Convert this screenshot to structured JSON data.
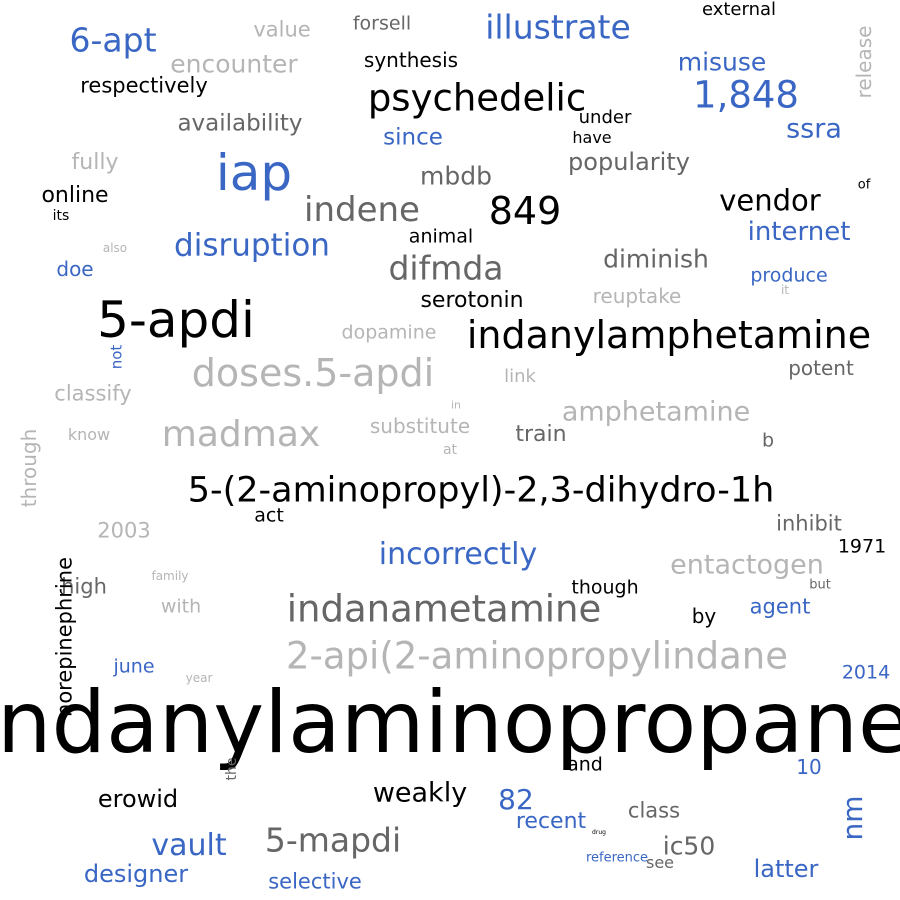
{
  "palette": {
    "black": "#000000",
    "blue": "#3a66c4",
    "dark_gray": "#666666",
    "light_gray": "#b5b5b5"
  },
  "words": [
    {
      "text": "indanylaminopropane",
      "color": "black"
    },
    {
      "text": "2-api(2-aminopropylindane",
      "color": "light_gray"
    },
    {
      "text": "5-(2-aminopropyl)-2,3-dihydro-1h",
      "color": "black"
    },
    {
      "text": "indanametamine",
      "color": "dark_gray"
    },
    {
      "text": "indanylamphetamine",
      "color": "black"
    },
    {
      "text": "5-apdi",
      "color": "black"
    },
    {
      "text": "doses.5-apdi",
      "color": "light_gray"
    },
    {
      "text": "iap",
      "color": "blue"
    },
    {
      "text": "madmax",
      "color": "light_gray"
    },
    {
      "text": "psychedelic",
      "color": "black"
    },
    {
      "text": "1,848",
      "color": "blue"
    },
    {
      "text": "indene",
      "color": "dark_gray"
    },
    {
      "text": "illustrate",
      "color": "blue"
    },
    {
      "text": "6-apt",
      "color": "blue"
    },
    {
      "text": "difmda",
      "color": "dark_gray"
    },
    {
      "text": "849",
      "color": "black"
    },
    {
      "text": "amphetamine",
      "color": "light_gray"
    },
    {
      "text": "disruption",
      "color": "blue"
    },
    {
      "text": "incorrectly",
      "color": "blue"
    },
    {
      "text": "5-mapdi",
      "color": "dark_gray"
    },
    {
      "text": "entactogen",
      "color": "light_gray"
    },
    {
      "text": "encounter",
      "color": "light_gray"
    },
    {
      "text": "vendor",
      "color": "black"
    },
    {
      "text": "internet",
      "color": "blue"
    },
    {
      "text": "diminish",
      "color": "dark_gray"
    },
    {
      "text": "popularity",
      "color": "dark_gray"
    },
    {
      "text": "availability",
      "color": "dark_gray"
    },
    {
      "text": "ssra",
      "color": "blue"
    },
    {
      "text": "misuse",
      "color": "blue"
    },
    {
      "text": "vault",
      "color": "blue"
    },
    {
      "text": "serotonin",
      "color": "black"
    },
    {
      "text": "mbdb",
      "color": "dark_gray"
    },
    {
      "text": "erowid",
      "color": "black"
    },
    {
      "text": "weakly",
      "color": "black"
    },
    {
      "text": "82",
      "color": "blue"
    },
    {
      "text": "nm",
      "color": "blue",
      "vertical": true
    },
    {
      "text": "designer",
      "color": "blue"
    },
    {
      "text": "ic50",
      "color": "dark_gray"
    },
    {
      "text": "latter",
      "color": "blue"
    },
    {
      "text": "recent",
      "color": "blue"
    },
    {
      "text": "selective",
      "color": "blue"
    },
    {
      "text": "respectively",
      "color": "black"
    },
    {
      "text": "synthesis",
      "color": "black"
    },
    {
      "text": "value",
      "color": "light_gray"
    },
    {
      "text": "forsell",
      "color": "dark_gray"
    },
    {
      "text": "external",
      "color": "black"
    },
    {
      "text": "release",
      "color": "light_gray",
      "vertical": true
    },
    {
      "text": "since",
      "color": "blue"
    },
    {
      "text": "under",
      "color": "black"
    },
    {
      "text": "have",
      "color": "black"
    },
    {
      "text": "fully",
      "color": "light_gray"
    },
    {
      "text": "online",
      "color": "black"
    },
    {
      "text": "its",
      "color": "black"
    },
    {
      "text": "of",
      "color": "black"
    },
    {
      "text": "animal",
      "color": "black"
    },
    {
      "text": "also",
      "color": "light_gray"
    },
    {
      "text": "doe",
      "color": "blue"
    },
    {
      "text": "produce",
      "color": "blue"
    },
    {
      "text": "it",
      "color": "light_gray"
    },
    {
      "text": "reuptake",
      "color": "light_gray"
    },
    {
      "text": "dopamine",
      "color": "light_gray"
    },
    {
      "text": "not",
      "color": "blue",
      "vertical": true
    },
    {
      "text": "link",
      "color": "light_gray"
    },
    {
      "text": "potent",
      "color": "dark_gray"
    },
    {
      "text": "classify",
      "color": "light_gray"
    },
    {
      "text": "in",
      "color": "light_gray"
    },
    {
      "text": "know",
      "color": "light_gray"
    },
    {
      "text": "substitute",
      "color": "light_gray"
    },
    {
      "text": "train",
      "color": "dark_gray"
    },
    {
      "text": "b",
      "color": "dark_gray"
    },
    {
      "text": "through",
      "color": "light_gray",
      "vertical": true
    },
    {
      "text": "act",
      "color": "black"
    },
    {
      "text": "2003",
      "color": "light_gray"
    },
    {
      "text": "inhibit",
      "color": "dark_gray"
    },
    {
      "text": "1971",
      "color": "black"
    },
    {
      "text": "high",
      "color": "dark_gray"
    },
    {
      "text": "family",
      "color": "light_gray"
    },
    {
      "text": "with",
      "color": "light_gray"
    },
    {
      "text": "though",
      "color": "black"
    },
    {
      "text": "but",
      "color": "dark_gray"
    },
    {
      "text": "by",
      "color": "black"
    },
    {
      "text": "agent",
      "color": "blue"
    },
    {
      "text": "2014",
      "color": "blue"
    },
    {
      "text": "norepinephrine",
      "color": "black",
      "vertical": true
    },
    {
      "text": "june",
      "color": "blue"
    },
    {
      "text": "year",
      "color": "light_gray"
    },
    {
      "text": "the",
      "color": "dark_gray",
      "vertical": true
    },
    {
      "text": "and",
      "color": "black"
    },
    {
      "text": "10",
      "color": "blue"
    },
    {
      "text": "class",
      "color": "dark_gray"
    },
    {
      "text": "drug",
      "color": "black"
    },
    {
      "text": "reference",
      "color": "blue"
    },
    {
      "text": "see",
      "color": "dark_gray"
    },
    {
      "text": "at",
      "color": "light_gray"
    }
  ]
}
